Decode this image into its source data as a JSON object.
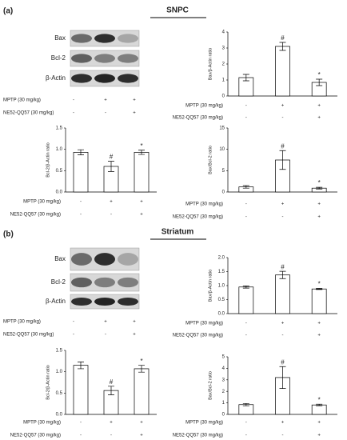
{
  "figure": {
    "panels": [
      {
        "label": "(a)",
        "title": "SNPC",
        "blot": {
          "bands": [
            "Bax",
            "Bcl-2",
            "β-Actin"
          ],
          "treatments": [
            {
              "label": "MPTP (30 mg/kg)",
              "signs": [
                "-",
                "+",
                "+"
              ]
            },
            {
              "label": "NE52-QQ57 (30 mg/kg)",
              "signs": [
                "-",
                "-",
                "+"
              ]
            }
          ]
        }
      },
      {
        "label": "(b)",
        "title": "Striatum",
        "blot": {
          "bands": [
            "Bax",
            "Bcl-2",
            "β-Actin"
          ],
          "treatments": [
            {
              "label": "MPTP (30 mg/kg)",
              "signs": [
                "-",
                "+",
                "+"
              ]
            },
            {
              "label": "NE52-QQ57 (30 mg/kg)",
              "signs": [
                "-",
                "-",
                "+"
              ]
            }
          ]
        }
      }
    ]
  },
  "chart_data": [
    {
      "type": "bar",
      "ylabel": "Bax/β-Actin ratio",
      "values": [
        1.15,
        3.1,
        0.85
      ],
      "errors": [
        0.2,
        0.25,
        0.2
      ],
      "annotations": [
        null,
        "#",
        "*"
      ],
      "ylim": [
        0,
        4
      ],
      "yticks": [
        0,
        1,
        2,
        3,
        4
      ],
      "color": "#ffffff",
      "treatments": [
        {
          "label": "MPTP (30 mg/kg)",
          "signs": [
            "-",
            "+",
            "+"
          ]
        },
        {
          "label": "NE52-QQ57 (30 mg/kg)",
          "signs": [
            "-",
            "-",
            "+"
          ]
        }
      ]
    },
    {
      "type": "bar",
      "ylabel": "Bcl-2/β-Actin ratio",
      "values": [
        0.93,
        0.6,
        0.93
      ],
      "errors": [
        0.06,
        0.12,
        0.05
      ],
      "annotations": [
        null,
        "#",
        "*"
      ],
      "ylim": [
        0,
        1.5
      ],
      "yticks": [
        {
          "value": 0,
          "label": "0.0"
        },
        0.5,
        {
          "value": 1,
          "label": "1.0"
        },
        1.5
      ],
      "color": "#ffffff",
      "treatments": [
        {
          "label": "MPTP (30 mg/kg)",
          "signs": [
            "-",
            "+",
            "+"
          ]
        },
        {
          "label": "NE52-QQ57 (30 mg/kg)",
          "signs": [
            "-",
            "-",
            "+"
          ]
        }
      ]
    },
    {
      "type": "bar",
      "ylabel": "Bax/Bcl-2 ratio",
      "values": [
        1.2,
        7.5,
        0.9
      ],
      "errors": [
        0.3,
        2.2,
        0.2
      ],
      "annotations": [
        null,
        "#",
        "*"
      ],
      "ylim": [
        0,
        15
      ],
      "yticks": [
        0,
        5,
        10,
        15
      ],
      "color": "#ffffff",
      "treatments": [
        {
          "label": "MPTP (30 mg/kg)",
          "signs": [
            "-",
            "+",
            "+"
          ]
        },
        {
          "label": "NE52-QQ57 (30 mg/kg)",
          "signs": [
            "-",
            "-",
            "+"
          ]
        }
      ]
    },
    {
      "type": "bar",
      "ylabel": "Bax/β-Actin ratio",
      "values": [
        0.95,
        1.38,
        0.88
      ],
      "errors": [
        0.04,
        0.13,
        0.02
      ],
      "annotations": [
        null,
        "#",
        "*"
      ],
      "ylim": [
        0,
        2
      ],
      "yticks": [
        {
          "value": 0,
          "label": "0.0"
        },
        0.5,
        {
          "value": 1,
          "label": "1.0"
        },
        1.5,
        {
          "value": 2,
          "label": "2.0"
        }
      ],
      "color": "#ffffff",
      "treatments": [
        {
          "label": "MPTP (30 mg/kg)",
          "signs": [
            "-",
            "+",
            "+"
          ]
        },
        {
          "label": "NE52-QQ57 (30 mg/kg)",
          "signs": [
            "-",
            "-",
            "+"
          ]
        }
      ]
    },
    {
      "type": "bar",
      "ylabel": "Bcl-2/β-Actin ratio",
      "values": [
        1.15,
        0.56,
        1.07
      ],
      "errors": [
        0.08,
        0.1,
        0.08
      ],
      "annotations": [
        null,
        "#",
        "*"
      ],
      "ylim": [
        0,
        1.5
      ],
      "yticks": [
        {
          "value": 0,
          "label": "0.0"
        },
        0.5,
        {
          "value": 1,
          "label": "1.0"
        },
        1.5
      ],
      "color": "#ffffff",
      "treatments": [
        {
          "label": "MPTP (30 mg/kg)",
          "signs": [
            "-",
            "+",
            "+"
          ]
        },
        {
          "label": "NE52-QQ57 (30 mg/kg)",
          "signs": [
            "-",
            "-",
            "+"
          ]
        }
      ]
    },
    {
      "type": "bar",
      "ylabel": "Bax/Bcl-2 ratio",
      "values": [
        0.85,
        3.2,
        0.82
      ],
      "errors": [
        0.1,
        0.95,
        0.07
      ],
      "annotations": [
        null,
        "#",
        "*"
      ],
      "ylim": [
        0,
        5
      ],
      "yticks": [
        0,
        1,
        2,
        3,
        4,
        5
      ],
      "color": "#ffffff",
      "treatments": [
        {
          "label": "MPTP (30 mg/kg)",
          "signs": [
            "-",
            "+",
            "+"
          ]
        },
        {
          "label": "NE52-QQ57 (30 mg/kg)",
          "signs": [
            "-",
            "-",
            "+"
          ]
        }
      ]
    }
  ]
}
